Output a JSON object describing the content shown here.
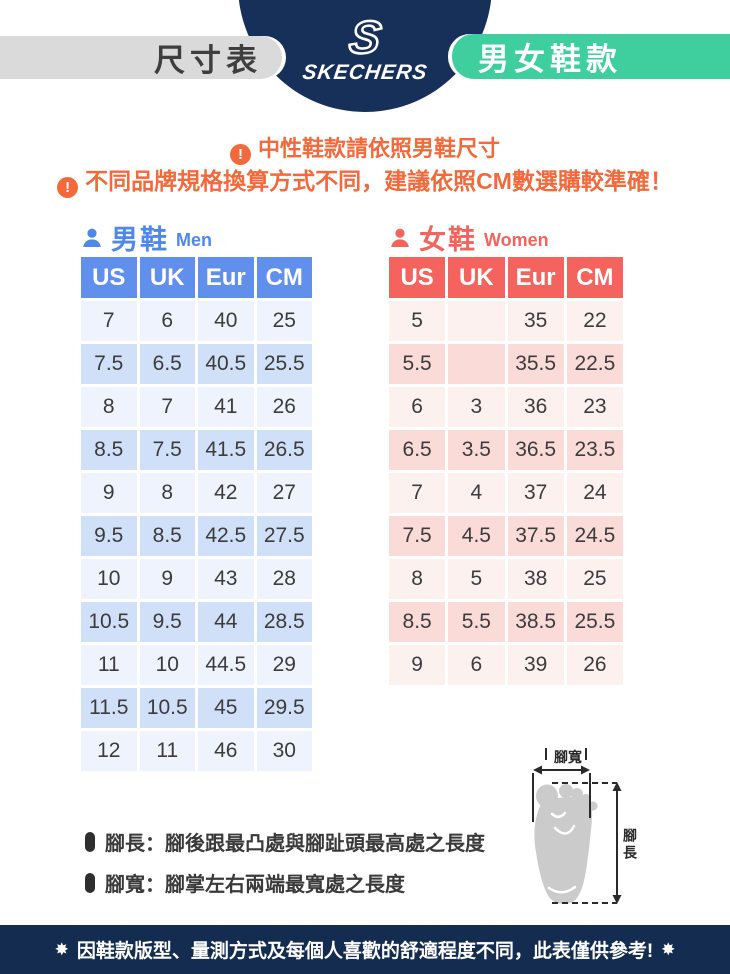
{
  "header": {
    "title": "尺寸表",
    "brand_initial": "S",
    "brand": "SKECHERS",
    "badge": "男女鞋款"
  },
  "icons": {
    "alert": "!",
    "star": "✸",
    "person": "person-silhouette"
  },
  "notices": [
    "中性鞋款請依照男鞋尺寸",
    "不同品牌規格換算方式不同，建議依照CM數選購較準確！"
  ],
  "men": {
    "title_zh": "男鞋",
    "title_en": "Men",
    "columns": [
      "US",
      "UK",
      "Eur",
      "CM"
    ],
    "rows": [
      [
        "7",
        "6",
        "40",
        "25"
      ],
      [
        "7.5",
        "6.5",
        "40.5",
        "25.5"
      ],
      [
        "8",
        "7",
        "41",
        "26"
      ],
      [
        "8.5",
        "7.5",
        "41.5",
        "26.5"
      ],
      [
        "9",
        "8",
        "42",
        "27"
      ],
      [
        "9.5",
        "8.5",
        "42.5",
        "27.5"
      ],
      [
        "10",
        "9",
        "43",
        "28"
      ],
      [
        "10.5",
        "9.5",
        "44",
        "28.5"
      ],
      [
        "11",
        "10",
        "44.5",
        "29"
      ],
      [
        "11.5",
        "10.5",
        "45",
        "29.5"
      ],
      [
        "12",
        "11",
        "46",
        "30"
      ]
    ]
  },
  "women": {
    "title_zh": "女鞋",
    "title_en": "Women",
    "columns": [
      "US",
      "UK",
      "Eur",
      "CM"
    ],
    "rows": [
      [
        "5",
        "",
        "35",
        "22"
      ],
      [
        "5.5",
        "",
        "35.5",
        "22.5"
      ],
      [
        "6",
        "3",
        "36",
        "23"
      ],
      [
        "6.5",
        "3.5",
        "36.5",
        "23.5"
      ],
      [
        "7",
        "4",
        "37",
        "24"
      ],
      [
        "7.5",
        "4.5",
        "37.5",
        "24.5"
      ],
      [
        "8",
        "5",
        "38",
        "25"
      ],
      [
        "8.5",
        "5.5",
        "38.5",
        "25.5"
      ],
      [
        "9",
        "6",
        "39",
        "26"
      ]
    ]
  },
  "legend": [
    "腳長：腳後跟最凸處與腳趾頭最高處之長度",
    "腳寬：腳掌左右兩端最寬處之長度"
  ],
  "diagram": {
    "width_label": "腳寬",
    "length_label": "腳長"
  },
  "footer": {
    "text": "因鞋款版型、量測方式及每個人喜歡的舒適程度不同，此表僅供參考!"
  },
  "colors": {
    "navy": "#16305A",
    "footer_navy": "#132C4F",
    "green": "#3FCE9E",
    "gray_badge": "#DADADA",
    "orange": "#F2693B",
    "men_blue": "#6190EC",
    "men_row_light": "#EEF3FD",
    "men_row_dark": "#CFE0F8",
    "women_red": "#F4635D",
    "women_row_light": "#FDF1F0",
    "women_row_dark": "#FBDBD8",
    "foot_gray": "#CBCBCB"
  }
}
